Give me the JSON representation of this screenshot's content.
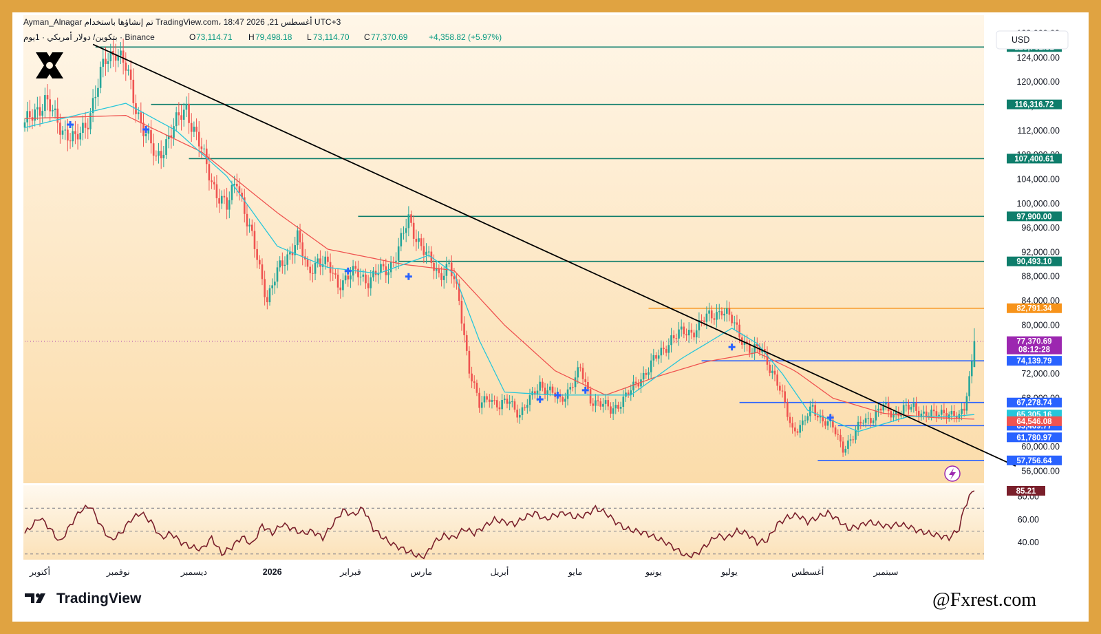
{
  "header": {
    "line1": "Ayman_Alnagar تم إنشاؤها باستخدام TradingView.com، 18:47 2026 ,21 أغسطس UTC+3",
    "pair": "بتكوين/ دولار أمريكي · 1يوم · Binance",
    "o_label": "O",
    "o_value": "73,114.71",
    "h_label": "H",
    "h_value": "79,498.18",
    "l_label": "L",
    "l_value": "73,114.70",
    "c_label": "C",
    "c_value": "77,370.69",
    "change": "+4,358.82 (+5.97%)"
  },
  "currency": "USD",
  "brand": "TradingView",
  "watermark": "@Fxrest.com",
  "icons": {
    "logo": "x-logo-icon",
    "tv": "tradingview-logo-icon",
    "flash": "lightning-icon"
  },
  "colors": {
    "bull": "#26a69a",
    "bear": "#ef5350",
    "ema_fast": "#26c6da",
    "ema_slow": "#ef5350",
    "green_level": "#0e7d6b",
    "blue_level": "#2962ff",
    "orange_level": "#f7931a",
    "price_tag": "#9c27b0",
    "rsi_line": "#7a1f2b",
    "trendline": "#000000",
    "frame": "#e0a341"
  },
  "chart_data": [
    {
      "type": "candlestick",
      "title": "",
      "y_axis": {
        "min": 54000,
        "max": 131000,
        "ticks": [
          "128,000.00",
          "124,000.00",
          "120,000.00",
          "116,000.00",
          "112,000.00",
          "108,000.00",
          "104,000.00",
          "100,000.00",
          "96,000.00",
          "92,000.00",
          "88,000.00",
          "84,000.00",
          "80,000.00",
          "76,000.00",
          "72,000.00",
          "68,000.00",
          "64,000.00",
          "60,000.00",
          "56,000.00"
        ],
        "tick_values": [
          128000,
          124000,
          120000,
          116000,
          112000,
          108000,
          104000,
          100000,
          96000,
          92000,
          88000,
          84000,
          80000,
          76000,
          72000,
          68000,
          64000,
          60000,
          56000
        ]
      },
      "x_axis": {
        "months": [
          "أكتوبر",
          "نوفمبر",
          "ديسمبر",
          "2026",
          "فبراير",
          "مارس",
          "أبريل",
          "مايو",
          "يونيو",
          "يوليو",
          "أغسطس",
          "سبتمبر"
        ],
        "month_day_index": [
          6,
          37,
          67,
          98,
          129,
          157,
          188,
          218,
          249,
          279,
          310,
          341
        ]
      },
      "price_path": [
        [
          0,
          112500
        ],
        [
          4,
          115500
        ],
        [
          8,
          116800
        ],
        [
          12,
          114000
        ],
        [
          16,
          112000
        ],
        [
          20,
          110000
        ],
        [
          24,
          113000
        ],
        [
          28,
          118000
        ],
        [
          32,
          123500
        ],
        [
          36,
          125700
        ],
        [
          40,
          122000
        ],
        [
          44,
          116000
        ],
        [
          48,
          111500
        ],
        [
          52,
          107000
        ],
        [
          56,
          110500
        ],
        [
          60,
          113000
        ],
        [
          64,
          116000
        ],
        [
          68,
          111000
        ],
        [
          72,
          106000
        ],
        [
          76,
          102000
        ],
        [
          80,
          99000
        ],
        [
          84,
          104500
        ],
        [
          88,
          97000
        ],
        [
          92,
          91000
        ],
        [
          96,
          84500
        ],
        [
          100,
          88500
        ],
        [
          104,
          91500
        ],
        [
          108,
          94500
        ],
        [
          112,
          88500
        ],
        [
          116,
          91000
        ],
        [
          120,
          89500
        ],
        [
          124,
          87000
        ],
        [
          128,
          88000
        ],
        [
          132,
          88500
        ],
        [
          136,
          87500
        ],
        [
          140,
          88500
        ],
        [
          144,
          89500
        ],
        [
          148,
          92500
        ],
        [
          152,
          97300
        ],
        [
          156,
          94000
        ],
        [
          160,
          90500
        ],
        [
          164,
          88500
        ],
        [
          168,
          89800
        ],
        [
          172,
          84000
        ],
        [
          176,
          73000
        ],
        [
          180,
          66500
        ],
        [
          184,
          68500
        ],
        [
          188,
          66500
        ],
        [
          192,
          67500
        ],
        [
          196,
          65500
        ],
        [
          200,
          67500
        ],
        [
          204,
          70500
        ],
        [
          208,
          69000
        ],
        [
          212,
          67500
        ],
        [
          216,
          70000
        ],
        [
          220,
          72500
        ],
        [
          224,
          68000
        ],
        [
          228,
          67000
        ],
        [
          232,
          66000
        ],
        [
          236,
          67500
        ],
        [
          240,
          69000
        ],
        [
          244,
          71500
        ],
        [
          248,
          73500
        ],
        [
          252,
          75500
        ],
        [
          256,
          78000
        ],
        [
          260,
          78500
        ],
        [
          264,
          79000
        ],
        [
          268,
          80500
        ],
        [
          272,
          81500
        ],
        [
          276,
          82800
        ],
        [
          280,
          80500
        ],
        [
          284,
          78000
        ],
        [
          288,
          75500
        ],
        [
          292,
          76000
        ],
        [
          296,
          72500
        ],
        [
          300,
          68000
        ],
        [
          304,
          63000
        ],
        [
          308,
          63500
        ],
        [
          312,
          66500
        ],
        [
          316,
          64500
        ],
        [
          320,
          63000
        ],
        [
          324,
          60000
        ],
        [
          328,
          61500
        ],
        [
          332,
          64500
        ],
        [
          336,
          65000
        ],
        [
          340,
          66500
        ],
        [
          344,
          65500
        ],
        [
          348,
          66000
        ],
        [
          352,
          66500
        ],
        [
          356,
          65500
        ],
        [
          360,
          65000
        ],
        [
          364,
          66000
        ],
        [
          368,
          65000
        ],
        [
          370,
          64500
        ],
        [
          372,
          66500
        ],
        [
          374,
          71500
        ],
        [
          376,
          77370
        ]
      ],
      "ema_fast": [
        [
          0,
          112500
        ],
        [
          40,
          116500
        ],
        [
          60,
          112000
        ],
        [
          80,
          104500
        ],
        [
          100,
          93000
        ],
        [
          120,
          89500
        ],
        [
          140,
          88500
        ],
        [
          160,
          91500
        ],
        [
          170,
          88500
        ],
        [
          180,
          77500
        ],
        [
          190,
          69000
        ],
        [
          210,
          68500
        ],
        [
          240,
          68500
        ],
        [
          260,
          74500
        ],
        [
          280,
          79500
        ],
        [
          290,
          77000
        ],
        [
          300,
          72000
        ],
        [
          310,
          66000
        ],
        [
          330,
          62500
        ],
        [
          350,
          65000
        ],
        [
          368,
          65000
        ],
        [
          376,
          65305
        ]
      ],
      "ema_slow": [
        [
          0,
          114000
        ],
        [
          40,
          114500
        ],
        [
          70,
          108500
        ],
        [
          100,
          98500
        ],
        [
          120,
          92500
        ],
        [
          150,
          90000
        ],
        [
          170,
          89000
        ],
        [
          190,
          80000
        ],
        [
          210,
          72500
        ],
        [
          230,
          68500
        ],
        [
          250,
          71500
        ],
        [
          270,
          74000
        ],
        [
          290,
          75500
        ],
        [
          305,
          72500
        ],
        [
          320,
          68000
        ],
        [
          340,
          65500
        ],
        [
          360,
          64800
        ],
        [
          376,
          64546
        ]
      ],
      "levels": [
        {
          "value": 125761.31,
          "label": "125,761.31",
          "kind": "green",
          "start_day": 28
        },
        {
          "value": 116316.72,
          "label": "116,316.72",
          "kind": "green",
          "start_day": 50
        },
        {
          "value": 107400.61,
          "label": "107,400.61",
          "kind": "green",
          "start_day": 65
        },
        {
          "value": 97900.0,
          "label": "97,900.00",
          "kind": "green",
          "start_day": 132
        },
        {
          "value": 90493.1,
          "label": "90,493.10",
          "kind": "green",
          "start_day": 148
        },
        {
          "value": 82791.34,
          "label": "82,791.34",
          "kind": "orange",
          "start_day": 247
        },
        {
          "value": 74139.79,
          "label": "74,139.79",
          "kind": "blue",
          "start_day": 268
        },
        {
          "value": 67278.74,
          "label": "67,278.74",
          "kind": "blue",
          "start_day": 283
        },
        {
          "value": 63469.77,
          "label": "63,469.77",
          "kind": "blue",
          "start_day": 322
        },
        {
          "value": 57756.64,
          "label": "57,756.64",
          "kind": "blue",
          "start_day": 314
        }
      ],
      "tags": [
        {
          "value": 77370.69,
          "label": "77,370.69",
          "sub": "08:12:28",
          "color": "#9c27b0"
        },
        {
          "value": 65305.16,
          "label": "65,305.16",
          "color": "#26c6da"
        },
        {
          "value": 64546.08,
          "label": "64,546.08",
          "color": "#ef5350"
        },
        {
          "value": 61780.97,
          "label": "61,780.97",
          "color": "#2962ff"
        }
      ],
      "last_price": 77370.69,
      "trendline": [
        [
          27,
          126200
        ],
        [
          376,
          60000
        ]
      ],
      "signals": [
        [
          18,
          113000
        ],
        [
          48,
          112200
        ],
        [
          128,
          88900
        ],
        [
          152,
          88000
        ],
        [
          204,
          67800
        ],
        [
          211,
          68500
        ],
        [
          222,
          69300
        ],
        [
          280,
          76400
        ],
        [
          319,
          64800
        ]
      ]
    },
    {
      "type": "line",
      "title": "RSI",
      "y_axis": {
        "min": 25,
        "max": 90,
        "ticks": [
          "80.00",
          "60.00",
          "40.00"
        ],
        "tick_values": [
          80,
          60,
          40
        ]
      },
      "bands": [
        70,
        50,
        30
      ],
      "last_value": 85.21,
      "last_label": "85.21",
      "values": [
        [
          0,
          48
        ],
        [
          6,
          62
        ],
        [
          10,
          52
        ],
        [
          14,
          40
        ],
        [
          18,
          55
        ],
        [
          22,
          68
        ],
        [
          26,
          72
        ],
        [
          30,
          55
        ],
        [
          34,
          42
        ],
        [
          38,
          48
        ],
        [
          42,
          60
        ],
        [
          46,
          66
        ],
        [
          50,
          58
        ],
        [
          54,
          44
        ],
        [
          58,
          48
        ],
        [
          62,
          40
        ],
        [
          66,
          36
        ],
        [
          70,
          34
        ],
        [
          74,
          44
        ],
        [
          78,
          30
        ],
        [
          82,
          36
        ],
        [
          86,
          45
        ],
        [
          90,
          38
        ],
        [
          94,
          55
        ],
        [
          98,
          48
        ],
        [
          102,
          56
        ],
        [
          106,
          52
        ],
        [
          110,
          48
        ],
        [
          114,
          50
        ],
        [
          118,
          44
        ],
        [
          122,
          56
        ],
        [
          126,
          68
        ],
        [
          130,
          64
        ],
        [
          134,
          70
        ],
        [
          138,
          52
        ],
        [
          142,
          44
        ],
        [
          146,
          38
        ],
        [
          150,
          34
        ],
        [
          154,
          30
        ],
        [
          158,
          26
        ],
        [
          162,
          40
        ],
        [
          166,
          46
        ],
        [
          170,
          44
        ],
        [
          174,
          52
        ],
        [
          178,
          48
        ],
        [
          182,
          54
        ],
        [
          186,
          60
        ],
        [
          190,
          58
        ],
        [
          194,
          56
        ],
        [
          198,
          62
        ],
        [
          202,
          66
        ],
        [
          206,
          60
        ],
        [
          210,
          64
        ],
        [
          214,
          66
        ],
        [
          218,
          62
        ],
        [
          222,
          64
        ],
        [
          226,
          70
        ],
        [
          230,
          66
        ],
        [
          234,
          58
        ],
        [
          238,
          52
        ],
        [
          242,
          50
        ],
        [
          246,
          48
        ],
        [
          250,
          44
        ],
        [
          254,
          40
        ],
        [
          258,
          34
        ],
        [
          262,
          28
        ],
        [
          266,
          30
        ],
        [
          270,
          38
        ],
        [
          274,
          46
        ],
        [
          278,
          44
        ],
        [
          282,
          50
        ],
        [
          286,
          48
        ],
        [
          290,
          40
        ],
        [
          294,
          42
        ],
        [
          298,
          56
        ],
        [
          302,
          62
        ],
        [
          306,
          64
        ],
        [
          310,
          58
        ],
        [
          314,
          62
        ],
        [
          318,
          66
        ],
        [
          322,
          60
        ],
        [
          326,
          52
        ],
        [
          330,
          54
        ],
        [
          334,
          58
        ],
        [
          338,
          56
        ],
        [
          342,
          54
        ],
        [
          346,
          56
        ],
        [
          350,
          54
        ],
        [
          354,
          50
        ],
        [
          358,
          48
        ],
        [
          362,
          46
        ],
        [
          366,
          44
        ],
        [
          370,
          52
        ],
        [
          372,
          70
        ],
        [
          374,
          80
        ],
        [
          376,
          85.21
        ]
      ]
    }
  ]
}
